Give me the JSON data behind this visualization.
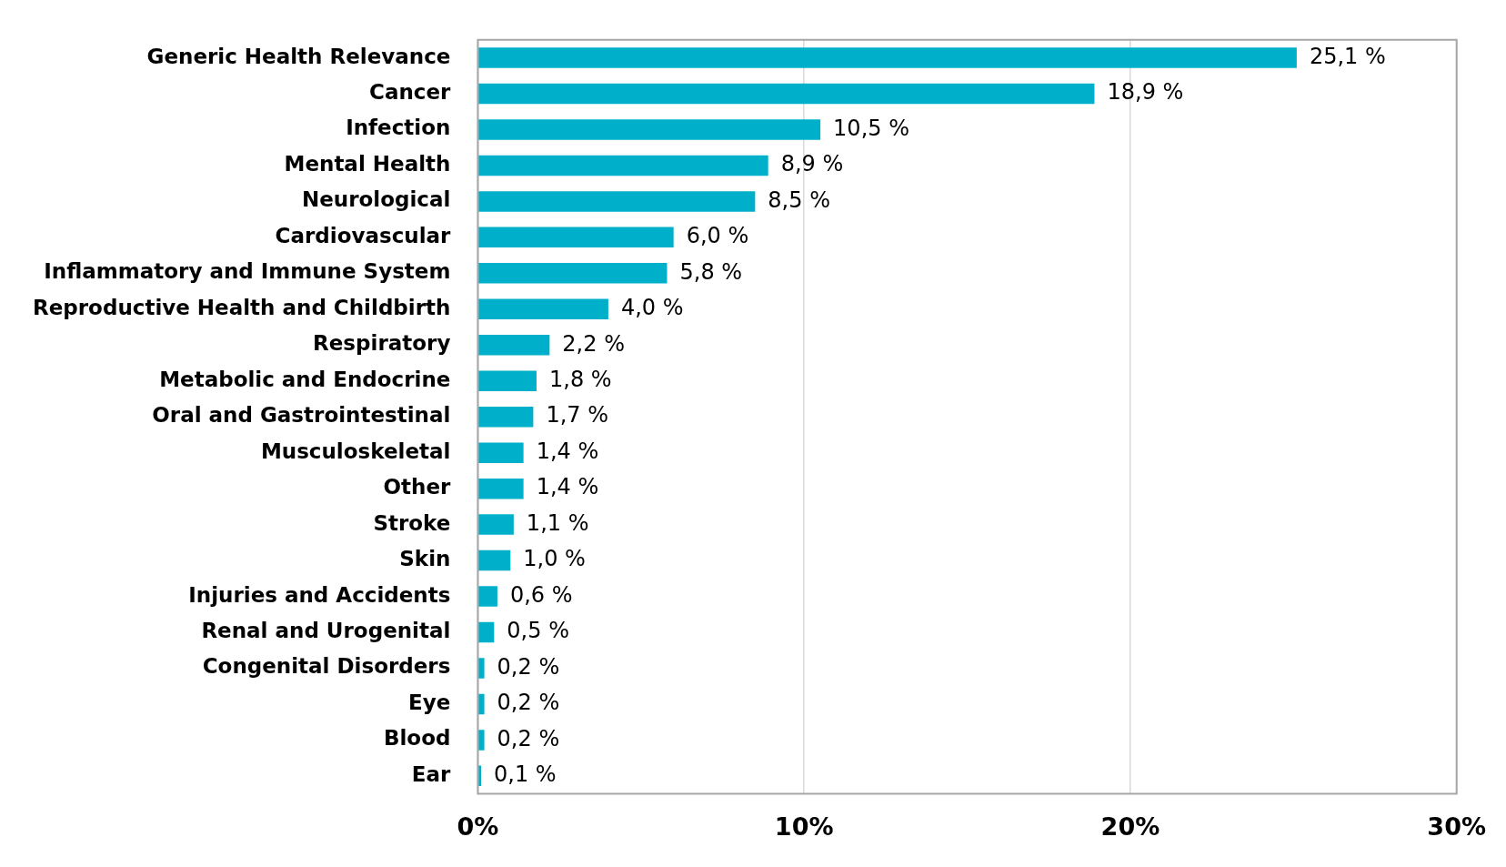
{
  "chart_data": {
    "type": "bar",
    "orientation": "horizontal",
    "categories": [
      "Generic Health Relevance",
      "Cancer",
      "Infection",
      "Mental Health",
      "Neurological",
      "Cardiovascular",
      "Inflammatory and Immune System",
      "Reproductive Health and Childbirth",
      "Respiratory",
      "Metabolic and Endocrine",
      "Oral and Gastrointestinal",
      "Musculoskeletal",
      "Other",
      "Stroke",
      "Skin",
      "Injuries and Accidents",
      "Renal and Urogenital",
      "Congenital Disorders",
      "Eye",
      "Blood",
      "Ear"
    ],
    "values": [
      25.1,
      18.9,
      10.5,
      8.9,
      8.5,
      6.0,
      5.8,
      4.0,
      2.2,
      1.8,
      1.7,
      1.4,
      1.4,
      1.1,
      1.0,
      0.6,
      0.5,
      0.2,
      0.2,
      0.2,
      0.1
    ],
    "value_labels": [
      "25,1 %",
      "18,9 %",
      "10,5 %",
      "8,9 %",
      "8,5 %",
      "6,0 %",
      "5,8 %",
      "4,0 %",
      "2,2 %",
      "1,8 %",
      "1,7 %",
      "1,4 %",
      "1,4 %",
      "1,1 %",
      "1,0 %",
      "0,6 %",
      "0,5 %",
      "0,2 %",
      "0,2 %",
      "0,2 %",
      "0,1 %"
    ],
    "color": "#00b0ca",
    "xlim": [
      0,
      30
    ],
    "xticks": [
      {
        "value": 0,
        "label": "0%"
      },
      {
        "value": 10,
        "label": "10%"
      },
      {
        "value": 20,
        "label": "20%"
      },
      {
        "value": 30,
        "label": "30%"
      }
    ],
    "grid": "x"
  }
}
